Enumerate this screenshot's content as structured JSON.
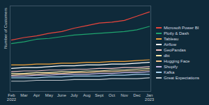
{
  "chart_data": {
    "type": "line",
    "y_label": "Number of Customers",
    "x": [
      "Feb 2022",
      "Mar",
      "Apr",
      "May",
      "June",
      "July",
      "Aug",
      "Sept",
      "Oct",
      "Nov",
      "Dec",
      "Jan 2023"
    ],
    "ylim": [
      0,
      100
    ],
    "tick_labels": "x",
    "grid": false,
    "legend": "right",
    "series": [
      {
        "name": "Microsoft Power BI",
        "color": "#e8453c",
        "values": [
          60,
          63,
          65,
          68,
          70,
          74,
          77,
          80,
          81,
          83,
          88,
          93
        ]
      },
      {
        "name": "Plotly & Dash",
        "color": "#1fa56e",
        "values": [
          56,
          58,
          61,
          62,
          64,
          66,
          67,
          68,
          69,
          70,
          72,
          76
        ]
      },
      {
        "name": "Tableau",
        "color": "#f2a33a",
        "values": [
          31,
          31,
          32,
          32,
          33,
          33,
          34,
          34,
          35,
          35,
          36,
          37
        ]
      },
      {
        "name": "Airflow",
        "color": "#ffffff",
        "values": [
          27,
          28,
          28,
          29,
          30,
          30,
          31,
          31,
          32,
          32,
          33,
          34
        ]
      },
      {
        "name": "GeoPandas",
        "color": "#f4c2c2",
        "values": [
          23,
          24,
          24,
          25,
          25,
          26,
          26,
          27,
          27,
          28,
          28,
          29
        ]
      },
      {
        "name": "dbt",
        "color": "#f6e7a8",
        "values": [
          21,
          21,
          22,
          22,
          23,
          23,
          24,
          24,
          25,
          25,
          26,
          27
        ]
      },
      {
        "name": "Hugging Face",
        "color": "#f7c58b",
        "values": [
          19,
          20,
          20,
          21,
          21,
          22,
          22,
          23,
          23,
          24,
          24,
          25
        ]
      },
      {
        "name": "Shopify",
        "color": "#c9b6e4",
        "values": [
          18,
          18,
          19,
          19,
          20,
          20,
          20,
          21,
          21,
          22,
          22,
          23
        ]
      },
      {
        "name": "Kafka",
        "color": "#a9d3ef",
        "values": [
          16,
          16,
          16,
          17,
          17,
          18,
          18,
          18,
          19,
          19,
          20,
          20
        ]
      },
      {
        "name": "Great Expectations",
        "color": "#c0c6cc",
        "values": [
          12,
          12,
          13,
          13,
          13,
          14,
          14,
          14,
          15,
          15,
          15,
          16
        ]
      }
    ]
  }
}
